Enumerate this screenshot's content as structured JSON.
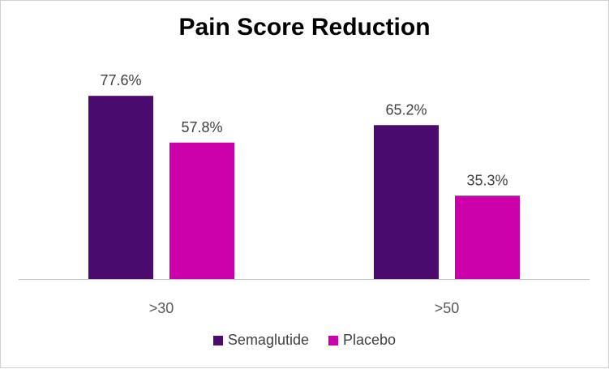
{
  "chart_data": {
    "type": "bar",
    "title": "Pain Score Reduction",
    "categories": [
      ">30",
      ">50"
    ],
    "series": [
      {
        "name": "Semaglutide",
        "values": [
          77.6,
          65.2
        ],
        "labels": [
          "77.6%",
          "65.2%"
        ],
        "color": "#4a0a6e"
      },
      {
        "name": "Placebo",
        "values": [
          57.8,
          35.3
        ],
        "labels": [
          "57.8%",
          "35.3%"
        ],
        "color": "#cc00aa"
      }
    ],
    "xlabel": "",
    "ylabel": "",
    "ylim": [
      0,
      100
    ],
    "grid": false,
    "legend": "bottom",
    "value_format": "percent"
  }
}
